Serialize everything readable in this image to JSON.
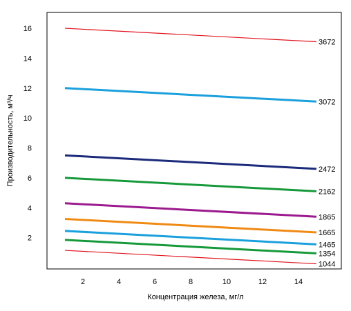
{
  "chart_data": {
    "type": "line",
    "xlabel": "Концентрация железа, мг/л",
    "ylabel": "Производительность, м³/ч",
    "xlim": [
      0,
      16
    ],
    "ylim": [
      0,
      17.5
    ],
    "xticks": [
      2,
      4,
      6,
      8,
      10,
      12,
      14
    ],
    "yticks": [
      2,
      4,
      6,
      8,
      10,
      12,
      14,
      16
    ],
    "grid": false,
    "x": [
      1,
      15
    ],
    "series": [
      {
        "name": "3672",
        "values": [
          16.0,
          15.1
        ],
        "color": "#e0141e",
        "width": "thin"
      },
      {
        "name": "3072",
        "values": [
          12.0,
          11.1
        ],
        "color": "#1aa0dc",
        "width": "thick"
      },
      {
        "name": "2472",
        "values": [
          7.5,
          6.6
        ],
        "color": "#1b2a7a",
        "width": "thick"
      },
      {
        "name": "2162",
        "values": [
          6.0,
          5.1
        ],
        "color": "#16993a",
        "width": "thick"
      },
      {
        "name": "1865",
        "values": [
          4.3,
          3.4
        ],
        "color": "#9b1a8e",
        "width": "thick"
      },
      {
        "name": "1665",
        "values": [
          3.25,
          2.35
        ],
        "color": "#f08a14",
        "width": "thick"
      },
      {
        "name": "1465",
        "values": [
          2.45,
          1.55
        ],
        "color": "#1aa0dc",
        "width": "thick"
      },
      {
        "name": "1354",
        "values": [
          1.85,
          0.95
        ],
        "color": "#16993a",
        "width": "thick"
      },
      {
        "name": "1044",
        "values": [
          1.15,
          0.25
        ],
        "color": "#e0141e",
        "width": "thin"
      }
    ]
  }
}
